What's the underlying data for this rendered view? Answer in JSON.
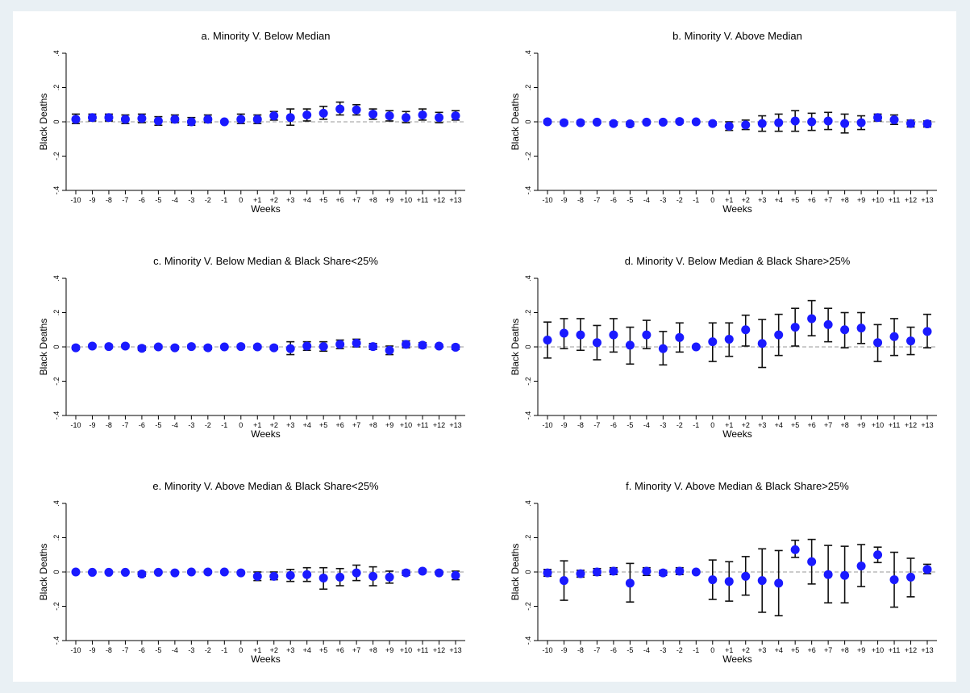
{
  "chart_data": [
    {
      "type": "scatter",
      "title": "a. Minority V. Below Median",
      "xlabel": "Weeks",
      "ylabel": "Black Deaths",
      "ylim": [
        -0.4,
        0.4
      ],
      "yticks": [
        "-.4",
        "-.2",
        "0",
        ".2",
        ".4"
      ],
      "ytick_values": [
        -0.4,
        -0.2,
        0,
        0.2,
        0.4
      ],
      "categories": [
        "-10",
        "-9",
        "-8",
        "-7",
        "-6",
        "-5",
        "-4",
        "-3",
        "-2",
        "-1",
        "0",
        "+1",
        "+2",
        "+3",
        "+4",
        "+5",
        "+6",
        "+7",
        "+8",
        "+9",
        "+10",
        "+11",
        "+12",
        "+13"
      ],
      "values": [
        0.015,
        0.025,
        0.025,
        0.015,
        0.02,
        0.005,
        0.015,
        0.0,
        0.015,
        0.0,
        0.015,
        0.015,
        0.035,
        0.025,
        0.04,
        0.05,
        0.075,
        0.07,
        0.045,
        0.035,
        0.025,
        0.04,
        0.025,
        0.035
      ],
      "lower": [
        -0.01,
        0.005,
        0.005,
        -0.01,
        -0.005,
        -0.02,
        -0.005,
        -0.02,
        -0.005,
        0.0,
        -0.01,
        -0.01,
        0.01,
        -0.02,
        0.005,
        0.015,
        0.04,
        0.04,
        0.015,
        0.005,
        -0.005,
        0.01,
        -0.005,
        0.01
      ],
      "upper": [
        0.045,
        0.045,
        0.045,
        0.04,
        0.045,
        0.03,
        0.04,
        0.025,
        0.04,
        0.0,
        0.045,
        0.04,
        0.06,
        0.075,
        0.075,
        0.09,
        0.115,
        0.1,
        0.075,
        0.065,
        0.06,
        0.075,
        0.055,
        0.065
      ]
    },
    {
      "type": "scatter",
      "title": "b. Minority V. Above Median",
      "xlabel": "Weeks",
      "ylabel": "Black Deaths",
      "ylim": [
        -0.4,
        0.4
      ],
      "yticks": [
        "-.4",
        "-.2",
        "0",
        ".2",
        ".4"
      ],
      "ytick_values": [
        -0.4,
        -0.2,
        0,
        0.2,
        0.4
      ],
      "categories": [
        "-10",
        "-9",
        "-8",
        "-7",
        "-6",
        "-5",
        "-4",
        "-3",
        "-2",
        "-1",
        "0",
        "+1",
        "+2",
        "+3",
        "+4",
        "+5",
        "+6",
        "+7",
        "+8",
        "+9",
        "+10",
        "+11",
        "+12",
        "+13"
      ],
      "values": [
        0.0,
        -0.005,
        -0.005,
        -0.002,
        -0.01,
        -0.012,
        -0.002,
        -0.002,
        0.002,
        0.0,
        -0.01,
        -0.025,
        -0.018,
        -0.01,
        -0.005,
        0.005,
        0.0,
        0.005,
        -0.01,
        -0.005,
        0.025,
        0.012,
        -0.01,
        -0.012
      ],
      "lower": [
        -0.01,
        -0.015,
        -0.015,
        -0.01,
        -0.02,
        -0.025,
        -0.012,
        -0.012,
        -0.008,
        0.0,
        -0.02,
        -0.05,
        -0.045,
        -0.055,
        -0.055,
        -0.055,
        -0.05,
        -0.045,
        -0.065,
        -0.045,
        0.005,
        -0.015,
        -0.03,
        -0.03
      ],
      "upper": [
        0.01,
        0.005,
        0.005,
        0.008,
        0.0,
        0.0,
        0.008,
        0.008,
        0.012,
        0.0,
        0.0,
        0.0,
        0.01,
        0.035,
        0.045,
        0.065,
        0.05,
        0.055,
        0.045,
        0.035,
        0.045,
        0.04,
        0.01,
        0.005
      ]
    },
    {
      "type": "scatter",
      "title": "c. Minority V. Below Median & Black Share<25%",
      "xlabel": "Weeks",
      "ylabel": "Black Deaths",
      "ylim": [
        -0.4,
        0.4
      ],
      "yticks": [
        "-.4",
        "-.2",
        "0",
        ".2",
        ".4"
      ],
      "ytick_values": [
        -0.4,
        -0.2,
        0,
        0.2,
        0.4
      ],
      "categories": [
        "-10",
        "-9",
        "-8",
        "-7",
        "-6",
        "-5",
        "-4",
        "-3",
        "-2",
        "-1",
        "0",
        "+1",
        "+2",
        "+3",
        "+4",
        "+5",
        "+6",
        "+7",
        "+8",
        "+9",
        "+10",
        "+11",
        "+12",
        "+13"
      ],
      "values": [
        -0.005,
        0.005,
        0.002,
        0.005,
        -0.008,
        0.0,
        -0.005,
        0.002,
        -0.005,
        0.0,
        0.002,
        0.0,
        -0.005,
        -0.01,
        0.005,
        0.002,
        0.015,
        0.022,
        0.002,
        -0.02,
        0.015,
        0.01,
        0.005,
        -0.002
      ],
      "lower": [
        -0.015,
        -0.005,
        -0.008,
        -0.005,
        -0.02,
        -0.01,
        -0.015,
        -0.008,
        -0.015,
        0.0,
        -0.008,
        -0.01,
        -0.015,
        -0.045,
        -0.02,
        -0.025,
        -0.01,
        0.0,
        -0.015,
        -0.045,
        -0.005,
        -0.005,
        -0.005,
        -0.015
      ],
      "upper": [
        0.005,
        0.015,
        0.012,
        0.015,
        0.005,
        0.01,
        0.005,
        0.012,
        0.005,
        0.0,
        0.012,
        0.01,
        0.005,
        0.03,
        0.03,
        0.03,
        0.04,
        0.045,
        0.02,
        0.005,
        0.035,
        0.025,
        0.015,
        0.01
      ]
    },
    {
      "type": "scatter",
      "title": "d. Minority V. Below Median & Black Share>25%",
      "xlabel": "Weeks",
      "ylabel": "Black Deaths",
      "ylim": [
        -0.4,
        0.4
      ],
      "yticks": [
        "-.4",
        "-.2",
        "0",
        ".2",
        ".4"
      ],
      "ytick_values": [
        -0.4,
        -0.2,
        0,
        0.2,
        0.4
      ],
      "categories": [
        "-10",
        "-9",
        "-8",
        "-7",
        "-6",
        "-5",
        "-4",
        "-3",
        "-2",
        "-1",
        "0",
        "+1",
        "+2",
        "+3",
        "+4",
        "+5",
        "+6",
        "+7",
        "+8",
        "+9",
        "+10",
        "+11",
        "+12",
        "+13"
      ],
      "values": [
        0.04,
        0.08,
        0.07,
        0.025,
        0.07,
        0.01,
        0.07,
        -0.01,
        0.055,
        0.0,
        0.03,
        0.045,
        0.1,
        0.02,
        0.07,
        0.115,
        0.165,
        0.13,
        0.1,
        0.11,
        0.025,
        0.06,
        0.035,
        0.09
      ],
      "lower": [
        -0.065,
        -0.01,
        -0.02,
        -0.075,
        -0.03,
        -0.1,
        -0.01,
        -0.105,
        -0.03,
        0.0,
        -0.085,
        -0.055,
        0.005,
        -0.12,
        -0.05,
        0.005,
        0.065,
        0.03,
        -0.005,
        0.02,
        -0.085,
        -0.05,
        -0.045,
        -0.005
      ],
      "upper": [
        0.145,
        0.165,
        0.165,
        0.125,
        0.165,
        0.115,
        0.155,
        0.09,
        0.14,
        0.0,
        0.14,
        0.14,
        0.185,
        0.16,
        0.19,
        0.225,
        0.27,
        0.225,
        0.2,
        0.2,
        0.13,
        0.165,
        0.115,
        0.19
      ]
    },
    {
      "type": "scatter",
      "title": "e. Minority V. Above Median & Black Share<25%",
      "xlabel": "Weeks",
      "ylabel": "Black Deaths",
      "ylim": [
        -0.4,
        0.4
      ],
      "yticks": [
        "-.4",
        "-.2",
        "0",
        ".2",
        ".4"
      ],
      "ytick_values": [
        -0.4,
        -0.2,
        0,
        0.2,
        0.4
      ],
      "categories": [
        "-10",
        "-9",
        "-8",
        "-7",
        "-6",
        "-5",
        "-4",
        "-3",
        "-2",
        "-1",
        "0",
        "+1",
        "+2",
        "+3",
        "+4",
        "+5",
        "+6",
        "+7",
        "+8",
        "+9",
        "+10",
        "+11",
        "+12",
        "+13"
      ],
      "values": [
        0.0,
        -0.002,
        -0.002,
        -0.002,
        -0.012,
        -0.002,
        -0.005,
        0.0,
        0.0,
        0.0,
        -0.005,
        -0.025,
        -0.025,
        -0.02,
        -0.015,
        -0.035,
        -0.03,
        -0.005,
        -0.025,
        -0.03,
        -0.005,
        0.005,
        -0.005,
        -0.02
      ],
      "lower": [
        -0.008,
        -0.01,
        -0.01,
        -0.01,
        -0.025,
        -0.01,
        -0.012,
        -0.008,
        -0.008,
        0.0,
        -0.012,
        -0.05,
        -0.045,
        -0.055,
        -0.055,
        -0.1,
        -0.08,
        -0.05,
        -0.08,
        -0.065,
        -0.02,
        -0.005,
        -0.015,
        -0.045
      ],
      "upper": [
        0.008,
        0.006,
        0.006,
        0.006,
        0.0,
        0.006,
        0.002,
        0.008,
        0.008,
        0.0,
        0.002,
        0.0,
        0.0,
        0.015,
        0.025,
        0.025,
        0.02,
        0.04,
        0.03,
        0.005,
        0.01,
        0.015,
        0.005,
        0.005
      ]
    },
    {
      "type": "scatter",
      "title": "f. Minority V. Above Median & Black Share>25%",
      "xlabel": "Weeks",
      "ylabel": "Black Deaths",
      "ylim": [
        -0.4,
        0.4
      ],
      "yticks": [
        "-.4",
        "-.2",
        "0",
        ".2",
        ".4"
      ],
      "ytick_values": [
        -0.4,
        -0.2,
        0,
        0.2,
        0.4
      ],
      "categories": [
        "-10",
        "-9",
        "-8",
        "-7",
        "-6",
        "-5",
        "-4",
        "-3",
        "-2",
        "-1",
        "0",
        "+1",
        "+2",
        "+3",
        "+4",
        "+5",
        "+6",
        "+7",
        "+8",
        "+9",
        "+10",
        "+11",
        "+12",
        "+13"
      ],
      "values": [
        -0.005,
        -0.05,
        -0.01,
        0.0,
        0.005,
        -0.065,
        0.005,
        -0.005,
        0.005,
        0.0,
        -0.045,
        -0.055,
        -0.025,
        -0.05,
        -0.065,
        0.13,
        0.06,
        -0.015,
        -0.02,
        0.035,
        0.1,
        -0.045,
        -0.03,
        0.015
      ],
      "lower": [
        -0.025,
        -0.165,
        -0.03,
        -0.02,
        -0.015,
        -0.175,
        -0.02,
        -0.02,
        -0.015,
        0.0,
        -0.16,
        -0.17,
        -0.135,
        -0.235,
        -0.255,
        0.085,
        -0.07,
        -0.18,
        -0.18,
        -0.085,
        0.055,
        -0.205,
        -0.145,
        -0.01
      ],
      "upper": [
        0.015,
        0.065,
        0.01,
        0.02,
        0.025,
        0.05,
        0.025,
        0.01,
        0.025,
        0.0,
        0.07,
        0.06,
        0.09,
        0.135,
        0.125,
        0.185,
        0.19,
        0.155,
        0.15,
        0.16,
        0.145,
        0.115,
        0.08,
        0.045
      ]
    }
  ]
}
